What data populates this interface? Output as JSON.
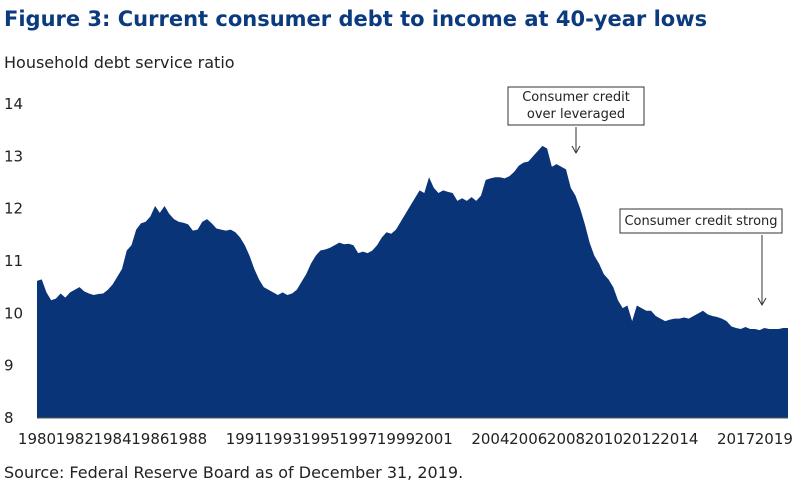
{
  "chart_data": {
    "type": "area",
    "title": "Figure 3: Current consumer debt to income at 40-year lows",
    "y_label": "Household debt service ratio",
    "source": "Source: Federal Reserve Board as of December 31, 2019.",
    "annotations": [
      [
        "Consumer credit",
        "over leveraged"
      ],
      [
        "Consumer credit strong"
      ]
    ],
    "color": "#0a3478",
    "xlim": [
      1980,
      2019.75
    ],
    "ylim": [
      8,
      14
    ],
    "yticks": [
      8,
      9,
      10,
      11,
      12,
      13,
      14
    ],
    "xticks": [
      1980,
      1982,
      1984,
      1986,
      1988,
      1991,
      1993,
      1995,
      1997,
      1999,
      2001,
      2004,
      2006,
      2008,
      2010,
      2012,
      2014,
      2017,
      2019
    ],
    "x": [
      1980,
      1980.25,
      1980.5,
      1980.75,
      1981,
      1981.25,
      1981.5,
      1981.75,
      1982,
      1982.25,
      1982.5,
      1982.75,
      1983,
      1983.25,
      1983.5,
      1983.75,
      1984,
      1984.25,
      1984.5,
      1984.75,
      1985,
      1985.25,
      1985.5,
      1985.75,
      1986,
      1986.25,
      1986.5,
      1986.75,
      1987,
      1987.25,
      1987.5,
      1987.75,
      1988,
      1988.25,
      1988.5,
      1988.75,
      1989,
      1989.25,
      1989.5,
      1989.75,
      1990,
      1990.25,
      1990.5,
      1990.75,
      1991,
      1991.25,
      1991.5,
      1991.75,
      1992,
      1992.25,
      1992.5,
      1992.75,
      1993,
      1993.25,
      1993.5,
      1993.75,
      1994,
      1994.25,
      1994.5,
      1994.75,
      1995,
      1995.25,
      1995.5,
      1995.75,
      1996,
      1996.25,
      1996.5,
      1996.75,
      1997,
      1997.25,
      1997.5,
      1997.75,
      1998,
      1998.25,
      1998.5,
      1998.75,
      1999,
      1999.25,
      1999.5,
      1999.75,
      2000,
      2000.25,
      2000.5,
      2000.75,
      2001,
      2001.25,
      2001.5,
      2001.75,
      2002,
      2002.25,
      2002.5,
      2002.75,
      2003,
      2003.25,
      2003.5,
      2003.75,
      2004,
      2004.25,
      2004.5,
      2004.75,
      2005,
      2005.25,
      2005.5,
      2005.75,
      2006,
      2006.25,
      2006.5,
      2006.75,
      2007,
      2007.25,
      2007.5,
      2007.75,
      2008,
      2008.25,
      2008.5,
      2008.75,
      2009,
      2009.25,
      2009.5,
      2009.75,
      2010,
      2010.25,
      2010.5,
      2010.75,
      2011,
      2011.25,
      2011.5,
      2011.75,
      2012,
      2012.25,
      2012.5,
      2012.75,
      2013,
      2013.25,
      2013.5,
      2013.75,
      2014,
      2014.25,
      2014.5,
      2014.75,
      2015,
      2015.25,
      2015.5,
      2015.75,
      2016,
      2016.25,
      2016.5,
      2016.75,
      2017,
      2017.25,
      2017.5,
      2017.75,
      2018,
      2018.25,
      2018.5,
      2018.75,
      2019,
      2019.25,
      2019.5,
      2019.75
    ],
    "values": [
      10.62,
      10.65,
      10.4,
      10.25,
      10.28,
      10.38,
      10.3,
      10.4,
      10.45,
      10.5,
      10.42,
      10.38,
      10.35,
      10.37,
      10.38,
      10.45,
      10.55,
      10.7,
      10.85,
      11.2,
      11.3,
      11.6,
      11.72,
      11.75,
      11.85,
      12.05,
      11.92,
      12.05,
      11.9,
      11.8,
      11.75,
      11.73,
      11.7,
      11.58,
      11.6,
      11.75,
      11.8,
      11.72,
      11.62,
      11.6,
      11.58,
      11.6,
      11.55,
      11.45,
      11.3,
      11.1,
      10.85,
      10.65,
      10.5,
      10.45,
      10.4,
      10.35,
      10.4,
      10.35,
      10.38,
      10.45,
      10.6,
      10.75,
      10.95,
      11.1,
      11.2,
      11.22,
      11.25,
      11.3,
      11.35,
      11.32,
      11.33,
      11.3,
      11.15,
      11.18,
      11.15,
      11.2,
      11.3,
      11.45,
      11.55,
      11.52,
      11.6,
      11.75,
      11.9,
      12.05,
      12.2,
      12.35,
      12.3,
      12.6,
      12.4,
      12.3,
      12.35,
      12.32,
      12.3,
      12.15,
      12.2,
      12.15,
      12.22,
      12.15,
      12.25,
      12.55,
      12.58,
      12.6,
      12.6,
      12.58,
      12.62,
      12.7,
      12.82,
      12.88,
      12.9,
      13.0,
      13.1,
      13.2,
      13.15,
      12.8,
      12.85,
      12.8,
      12.75,
      12.4,
      12.25,
      12.0,
      11.7,
      11.35,
      11.1,
      10.95,
      10.75,
      10.65,
      10.5,
      10.25,
      10.1,
      10.15,
      9.85,
      10.15,
      10.1,
      10.05,
      10.05,
      9.95,
      9.9,
      9.85,
      9.88,
      9.9,
      9.9,
      9.92,
      9.9,
      9.95,
      10.0,
      10.05,
      9.98,
      9.95,
      9.93,
      9.9,
      9.85,
      9.75,
      9.72,
      9.7,
      9.74,
      9.7,
      9.7,
      9.68,
      9.72,
      9.7,
      9.7,
      9.7,
      9.72,
      9.72
    ]
  }
}
